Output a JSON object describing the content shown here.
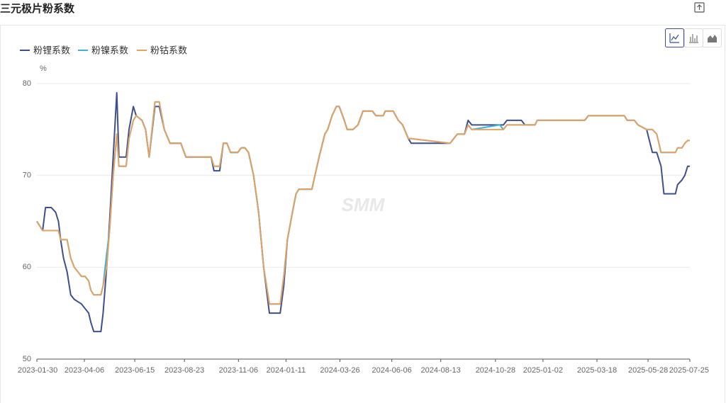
{
  "title": "三元极片粉系数",
  "chart_data": {
    "type": "line",
    "ylabel": "%",
    "watermark": "SMM",
    "x": [
      "2023-01-30",
      "2023-02-07",
      "2023-02-11",
      "2023-02-19",
      "2023-02-25",
      "2023-03-01",
      "2023-03-04",
      "2023-03-08",
      "2023-03-13",
      "2023-03-18",
      "2023-03-23",
      "2023-04-02",
      "2023-04-07",
      "2023-04-12",
      "2023-04-15",
      "2023-04-19",
      "2023-04-29",
      "2023-05-02",
      "2023-05-07",
      "2023-05-11",
      "2023-05-16",
      "2023-05-21",
      "2023-05-24",
      "2023-06-03",
      "2023-06-07",
      "2023-06-13",
      "2023-06-17",
      "2023-06-25",
      "2023-06-30",
      "2023-07-05",
      "2023-07-13",
      "2023-07-19",
      "2023-07-26",
      "2023-08-03",
      "2023-08-18",
      "2023-08-25",
      "2023-09-29",
      "2023-10-03",
      "2023-10-11",
      "2023-10-16",
      "2023-10-21",
      "2023-10-26",
      "2023-11-05",
      "2023-11-10",
      "2023-11-15",
      "2023-11-20",
      "2023-11-27",
      "2023-12-04",
      "2023-12-11",
      "2023-12-19",
      "2024-01-03",
      "2024-01-08",
      "2024-01-13",
      "2024-01-20",
      "2024-01-25",
      "2024-01-29",
      "2024-02-16",
      "2024-02-26",
      "2024-03-05",
      "2024-03-09",
      "2024-03-15",
      "2024-03-21",
      "2024-03-25",
      "2024-04-01",
      "2024-04-05",
      "2024-04-13",
      "2024-04-20",
      "2024-04-27",
      "2024-05-10",
      "2024-05-15",
      "2024-05-25",
      "2024-05-28",
      "2024-06-08",
      "2024-06-15",
      "2024-06-21",
      "2024-06-29",
      "2024-07-03",
      "2024-08-26",
      "2024-08-31",
      "2024-09-05",
      "2024-09-15",
      "2024-09-20",
      "2024-09-25",
      "2024-11-03",
      "2024-11-08",
      "2024-11-13",
      "2024-12-03",
      "2024-12-08",
      "2024-12-22",
      "2024-12-25",
      "2025-03-01",
      "2025-03-06",
      "2025-04-25",
      "2025-04-29",
      "2025-05-09",
      "2025-05-14",
      "2025-05-26",
      "2025-06-03",
      "2025-06-09",
      "2025-06-15",
      "2025-06-19",
      "2025-07-05",
      "2025-07-08",
      "2025-07-14",
      "2025-07-18",
      "2025-07-22",
      "2025-07-25"
    ],
    "series": [
      {
        "name": "粉锂系数",
        "color": "#3d4f8f",
        "values": [
          65,
          64,
          66.5,
          66.5,
          66,
          65,
          63,
          61,
          59.5,
          57,
          56.5,
          56,
          55.5,
          55,
          54,
          53,
          53,
          55,
          60,
          65,
          72,
          79,
          72,
          72,
          75,
          77.5,
          76.5,
          76,
          75,
          72,
          77.5,
          77.5,
          75,
          73.5,
          73.5,
          72,
          72,
          70.5,
          70.5,
          73.5,
          73.5,
          72.5,
          72.5,
          73,
          73,
          72.5,
          70,
          66,
          60,
          55,
          55,
          58,
          63,
          66,
          68,
          68.5,
          68.5,
          72,
          74.5,
          75,
          76.5,
          77.5,
          77.5,
          76,
          75,
          75,
          75.5,
          77,
          77,
          76.5,
          76.5,
          77,
          77,
          76,
          75.5,
          74,
          73.5,
          73.5,
          74,
          74.5,
          74.5,
          76,
          75.5,
          75.5,
          75.5,
          76,
          76,
          75.5,
          75.5,
          76,
          76,
          76.5,
          76.5,
          76,
          76,
          75.5,
          75,
          72.5,
          72.5,
          71,
          68,
          68,
          69,
          69.5,
          70,
          71,
          71
        ]
      },
      {
        "name": "粉镍系数",
        "color": "#3bb4d8",
        "values": [
          65,
          64,
          64,
          64,
          64,
          64,
          63,
          63,
          63,
          61,
          60,
          59,
          59,
          58.5,
          57.5,
          57,
          57,
          58,
          61.5,
          64,
          70,
          74.5,
          71,
          71,
          74,
          76,
          76.5,
          76,
          75,
          72,
          78,
          78,
          75,
          73.5,
          73.5,
          72,
          72,
          71,
          71,
          73.5,
          73.5,
          72.5,
          72.5,
          73,
          73,
          72.5,
          70,
          66,
          60,
          56,
          56,
          59,
          63,
          66,
          68,
          68.5,
          68.5,
          72,
          74.5,
          75,
          76.5,
          77.5,
          77.5,
          76,
          75,
          75,
          75.5,
          77,
          77,
          76.5,
          76.5,
          77,
          77,
          76,
          75.5,
          74,
          74,
          73.5,
          74,
          74.5,
          74.5,
          75.5,
          75,
          75.5,
          75,
          75.5,
          75.5,
          75.5,
          75.5,
          76,
          76,
          76.5,
          76.5,
          76,
          76,
          75.5,
          75,
          75,
          74.5,
          72.5,
          72.5,
          72.5,
          73,
          73,
          73.5,
          73.8,
          73.8
        ]
      },
      {
        "name": "粉钴系数",
        "color": "#e3a263",
        "values": [
          65,
          64,
          64,
          64,
          64,
          64,
          63,
          63,
          63,
          61,
          60,
          59,
          59,
          58.5,
          57.5,
          57,
          57,
          58,
          60,
          64,
          70,
          74.5,
          71,
          71,
          74,
          76,
          76.5,
          76,
          75,
          72,
          78,
          78,
          75,
          73.5,
          73.5,
          72,
          72,
          71,
          71,
          73.5,
          73.5,
          72.5,
          72.5,
          73,
          73,
          72.5,
          70,
          66,
          60,
          56,
          56,
          59,
          63,
          66,
          68,
          68.5,
          68.5,
          72,
          74.5,
          75,
          76.5,
          77.5,
          77.5,
          76,
          75,
          75,
          75.5,
          77,
          77,
          76.5,
          76.5,
          77,
          77,
          76,
          75.5,
          74,
          74,
          73.5,
          74,
          74.5,
          74.5,
          75.5,
          75,
          75,
          75,
          75.5,
          75.5,
          75.5,
          75.5,
          76,
          76,
          76.5,
          76.5,
          76,
          76,
          75.5,
          75,
          75,
          74.5,
          72.5,
          72.5,
          72.5,
          73,
          73,
          73.5,
          73.8,
          73.8
        ]
      }
    ],
    "xlim": [
      "2023-01-30",
      "2025-07-25"
    ],
    "xticks": [
      "2023-01-30",
      "2023-04-06",
      "2023-06-15",
      "2023-08-23",
      "2023-11-06",
      "2024-01-11",
      "2024-03-26",
      "2024-06-06",
      "2024-08-13",
      "2024-10-28",
      "2025-01-02",
      "2025-03-18",
      "2025-05-28",
      "2025-07-25"
    ],
    "ylim": [
      50,
      80
    ],
    "yticks": [
      50,
      60,
      70,
      80
    ],
    "grid": true
  }
}
